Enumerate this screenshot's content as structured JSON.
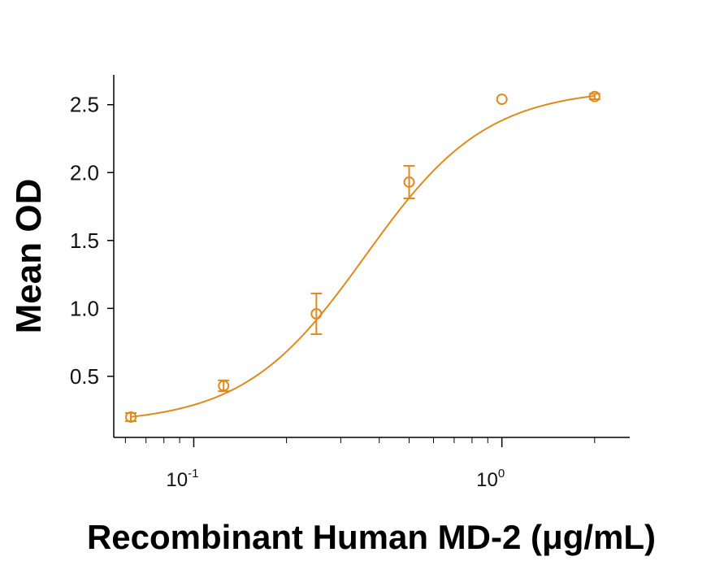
{
  "chart_data": {
    "type": "scatter",
    "title": "",
    "xlabel": "Recombinant Human MD-2 (μg/mL)",
    "ylabel": "Mean OD",
    "x_scale": "log",
    "xlim": [
      0.055,
      2.6
    ],
    "ylim": [
      0.05,
      2.72
    ],
    "x_ticks": [
      {
        "value": 0.1,
        "base": "10",
        "exp": "-1"
      },
      {
        "value": 1,
        "base": "10",
        "exp": "0"
      }
    ],
    "y_ticks": [
      {
        "value": 0.5,
        "label": "0.5"
      },
      {
        "value": 1.0,
        "label": "1.0"
      },
      {
        "value": 1.5,
        "label": "1.5"
      },
      {
        "value": 2.0,
        "label": "2.0"
      },
      {
        "value": 2.5,
        "label": "2.5"
      }
    ],
    "grid": false,
    "color": "#E08A1E",
    "series": [
      {
        "x": [
          0.0625,
          0.125,
          0.25,
          0.5,
          1,
          2
        ],
        "y": [
          0.2,
          0.43,
          0.96,
          1.93,
          2.54,
          2.56
        ],
        "error": [
          0.03,
          0.04,
          0.15,
          0.12,
          0.0,
          0.02
        ],
        "fit": {
          "model": "4PL",
          "bottom": 0.15,
          "top": 2.62,
          "ec50": 0.36,
          "hill": 2.2
        }
      }
    ]
  }
}
